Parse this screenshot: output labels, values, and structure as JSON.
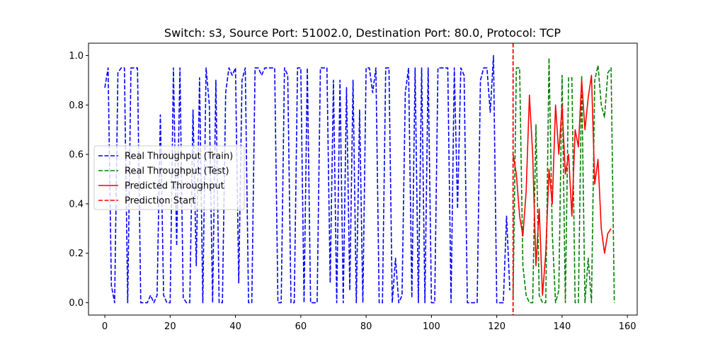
{
  "chart_data": {
    "type": "line",
    "title": "Switch: s3, Source Port: 51002.0, Destination Port: 80.0, Protocol: TCP",
    "xlabel": "",
    "ylabel": "",
    "xlim": [
      -5,
      163
    ],
    "ylim": [
      -0.05,
      1.05
    ],
    "xticks": [
      0,
      20,
      40,
      60,
      80,
      100,
      120,
      140,
      160
    ],
    "yticks": [
      0.0,
      0.2,
      0.4,
      0.6,
      0.8,
      1.0
    ],
    "xtick_labels": [
      "0",
      "20",
      "40",
      "60",
      "80",
      "100",
      "120",
      "140",
      "160"
    ],
    "ytick_labels": [
      "0.0",
      "0.2",
      "0.4",
      "0.6",
      "0.8",
      "1.0"
    ],
    "grid": false,
    "legend_position": "center-left",
    "prediction_start": 125,
    "series": [
      {
        "name": "Real Throughput (Train)",
        "color": "#0000ff",
        "style": "dashed",
        "x_start": 0,
        "values": [
          0.87,
          0.95,
          0.07,
          0.0,
          0.93,
          0.95,
          0.95,
          0.0,
          0.95,
          0.95,
          0.95,
          0.0,
          0.0,
          0.0,
          0.03,
          0.0,
          0.03,
          0.76,
          0.03,
          0.0,
          0.0,
          0.95,
          0.23,
          0.95,
          0.02,
          0.0,
          0.0,
          0.78,
          0.15,
          0.91,
          0.0,
          0.95,
          0.8,
          0.0,
          0.9,
          0.0,
          0.0,
          0.85,
          0.95,
          0.92,
          0.95,
          0.08,
          0.9,
          0.95,
          0.0,
          0.0,
          0.95,
          0.95,
          0.92,
          0.95,
          0.95,
          0.95,
          0.95,
          0.0,
          0.0,
          0.95,
          0.92,
          0.0,
          0.0,
          0.95,
          0.95,
          0.0,
          0.95,
          0.0,
          0.0,
          0.0,
          0.95,
          0.95,
          0.95,
          0.08,
          0.9,
          0.0,
          0.9,
          0.0,
          0.87,
          0.05,
          0.9,
          0.0,
          0.78,
          0.0,
          0.95,
          0.95,
          0.85,
          0.95,
          0.0,
          0.0,
          0.95,
          0.95,
          0.0,
          0.18,
          0.0,
          0.03,
          0.85,
          0.95,
          0.02,
          0.95,
          0.0,
          0.95,
          0.0,
          0.95,
          0.0,
          0.0,
          0.95,
          0.95,
          0.95,
          0.95,
          0.0,
          0.95,
          0.38,
          0.95,
          0.92,
          0.0,
          0.0,
          0.0,
          0.0,
          0.9,
          0.95,
          0.95,
          0.77,
          1.0,
          0.0,
          0.0,
          0.0,
          0.35,
          0.05
        ]
      },
      {
        "name": "Real Throughput (Test)",
        "color": "#008000",
        "style": "dashed",
        "x_start": 125,
        "values": [
          0.02,
          0.95,
          0.95,
          0.15,
          0.03,
          0.0,
          0.0,
          0.72,
          0.03,
          0.0,
          0.0,
          0.99,
          0.28,
          0.0,
          0.05,
          0.92,
          0.0,
          0.91,
          0.91,
          0.0,
          0.0,
          0.92,
          0.0,
          0.18,
          0.0,
          0.9,
          0.96,
          0.8,
          0.75,
          0.93,
          0.95,
          0.0
        ]
      },
      {
        "name": "Predicted Throughput",
        "color": "#ff0000",
        "style": "solid",
        "x_start": 125,
        "values": [
          0.6,
          0.52,
          0.35,
          0.27,
          0.45,
          0.84,
          0.6,
          0.15,
          0.38,
          0.03,
          0.2,
          0.54,
          0.4,
          0.8,
          0.6,
          0.8,
          0.52,
          0.6,
          0.35,
          0.7,
          0.63,
          0.9,
          0.7,
          0.83,
          0.92,
          0.48,
          0.58,
          0.3,
          0.2,
          0.28,
          0.3
        ]
      }
    ],
    "legend": [
      {
        "label": "Real Throughput (Train)",
        "color": "#0000ff",
        "style": "dashed"
      },
      {
        "label": "Real Throughput (Test)",
        "color": "#008000",
        "style": "dashed"
      },
      {
        "label": "Predicted Throughput",
        "color": "#ff0000",
        "style": "solid"
      },
      {
        "label": "Prediction Start",
        "color": "#ff0000",
        "style": "dashed"
      }
    ]
  }
}
